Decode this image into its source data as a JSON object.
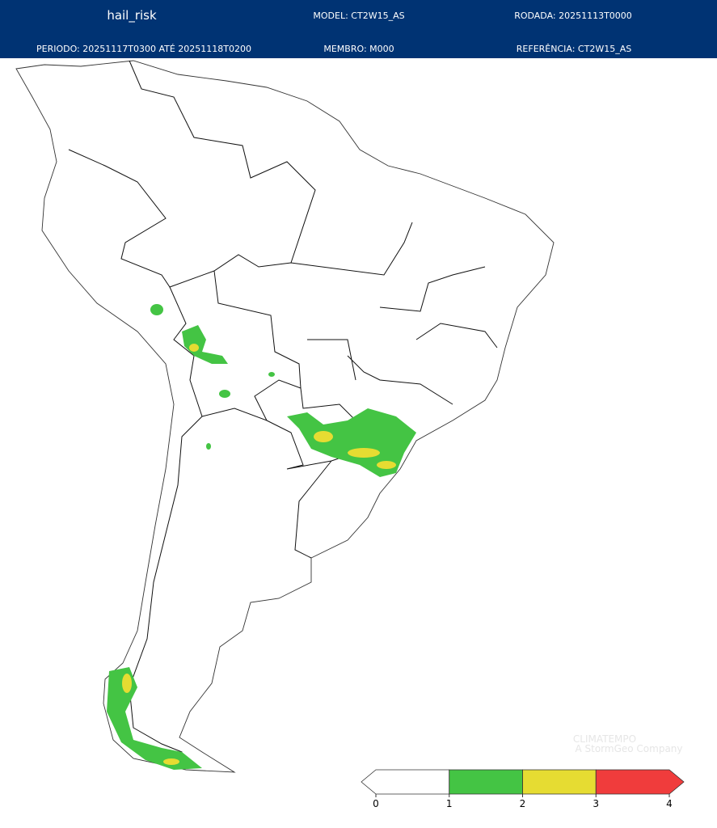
{
  "header": {
    "title": "hail_risk",
    "model": "MODEL: CT2W15_AS",
    "run": "RODADA: 20251113T0000",
    "period": "PERIODO: 20251117T0300 ATÉ 20251118T0200",
    "member": "MEMBRO: M000",
    "reference": "REFERÊNCIA: CT2W15_AS"
  },
  "colorbar": {
    "ticks": [
      0,
      1,
      2,
      3,
      4
    ],
    "colors": [
      "#ffffff",
      "#44c444",
      "#e6dc32",
      "#f03c3c"
    ]
  },
  "watermark": {
    "brand": "CLIMATEMPO",
    "tagline": "A StormGeo Company"
  }
}
